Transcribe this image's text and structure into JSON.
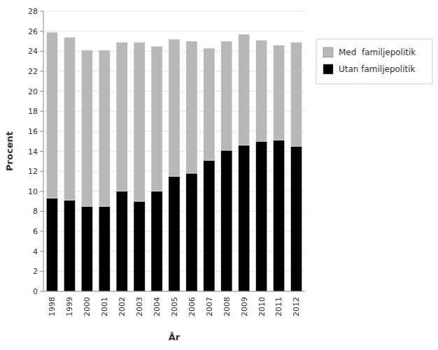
{
  "chart_data": {
    "type": "bar",
    "stacked": true,
    "grid": true,
    "legend": "right",
    "xlabel": "År",
    "ylabel": "Procent",
    "categories": [
      "1998",
      "1999",
      "2000",
      "2001",
      "2002",
      "2003",
      "2004",
      "2005",
      "2006",
      "2007",
      "2008",
      "2009",
      "2010",
      "2011",
      "2012"
    ],
    "series": [
      {
        "name": "Utan familjepolitik",
        "color": "#000000",
        "values": [
          9.3,
          9.1,
          8.5,
          8.5,
          10.0,
          9.0,
          10.0,
          11.5,
          11.8,
          13.1,
          14.1,
          14.6,
          15.0,
          15.1,
          14.5
        ]
      },
      {
        "name": "Med  familjepolitik",
        "color": "#b8b8b8",
        "values": [
          16.6,
          16.3,
          15.6,
          15.6,
          14.9,
          15.9,
          14.5,
          13.7,
          13.2,
          11.2,
          10.9,
          11.1,
          10.1,
          9.5,
          10.4
        ]
      }
    ],
    "ylim": [
      0,
      28
    ],
    "yticks": [
      0,
      2,
      4,
      6,
      8,
      10,
      12,
      14,
      16,
      18,
      20,
      22,
      24,
      26,
      28
    ]
  }
}
